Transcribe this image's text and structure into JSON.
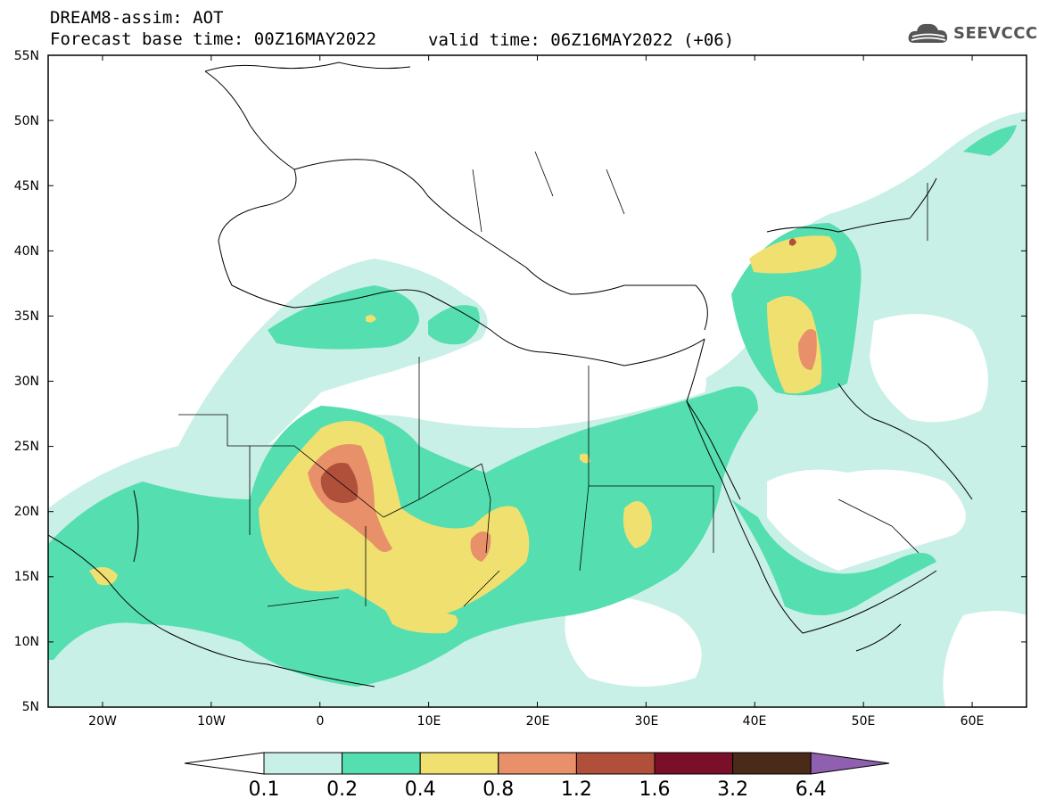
{
  "header": {
    "model_line": "DREAM8-assim: AOT",
    "base_time": "Forecast base time: 00Z16MAY2022",
    "valid_time": "valid time: 06Z16MAY2022 (+06)",
    "logo_text": "SEEVCCC"
  },
  "map": {
    "extent": {
      "lon": [
        -25,
        65
      ],
      "lat": [
        5,
        55
      ]
    },
    "lat_ticks": [
      "5N",
      "10N",
      "15N",
      "20N",
      "25N",
      "30N",
      "35N",
      "40N",
      "45N",
      "50N",
      "55N"
    ],
    "lon_ticks": [
      "20W",
      "10W",
      "0",
      "10E",
      "20E",
      "30E",
      "40E",
      "50E",
      "60E"
    ]
  },
  "colorbar": {
    "labels": [
      "0.1",
      "0.2",
      "0.4",
      "0.8",
      "1.2",
      "1.6",
      "3.2",
      "6.4"
    ],
    "colors": [
      "#ffffff",
      "#c8f0e6",
      "#55deb0",
      "#f0e070",
      "#e8906a",
      "#b0503a",
      "#7a0f2a",
      "#4a2a18",
      "#9060b0"
    ]
  }
}
